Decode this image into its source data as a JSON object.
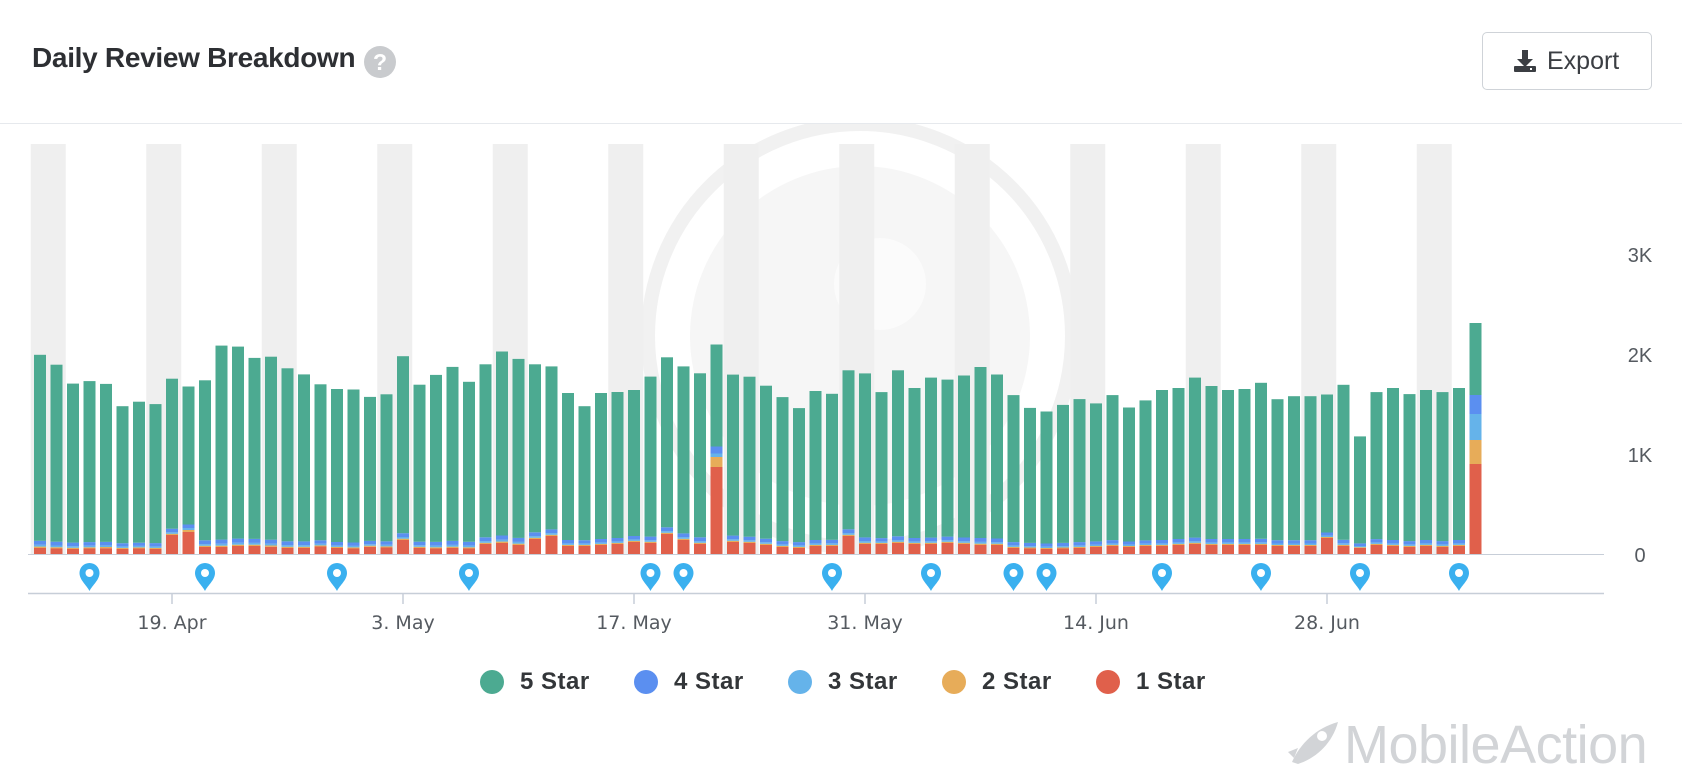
{
  "header": {
    "title": "Daily Review Breakdown",
    "export_label": "Export"
  },
  "icons": {
    "help": "question-circle-icon",
    "export": "download-icon",
    "event_marker": "map-pin-icon"
  },
  "brand": {
    "name": "MobileAction"
  },
  "legend": [
    {
      "label": "5 Star",
      "color": "#4caa91"
    },
    {
      "label": "4 Star",
      "color": "#5b8ff0"
    },
    {
      "label": "3 Star",
      "color": "#65b3ea"
    },
    {
      "label": "2 Star",
      "color": "#e7ac59"
    },
    {
      "label": "1 Star",
      "color": "#e0604b"
    }
  ],
  "chart_data": {
    "type": "bar",
    "stacked": true,
    "start_date": "2020-04-11",
    "x_ticks": [
      "19. Apr",
      "3. May",
      "17. May",
      "31. May",
      "14. Jun",
      "28. Jun"
    ],
    "y_ticks": [
      "0",
      "1K",
      "2K",
      "3K"
    ],
    "ylim": [
      0,
      4000
    ],
    "y_axis_side": "right",
    "weekend_bands": true,
    "event_marker_days": [
      3,
      10,
      18,
      26,
      37,
      39,
      48,
      54,
      59,
      61,
      68,
      74,
      80,
      86
    ],
    "series": [
      {
        "name": "5 Star",
        "color": "#4caa91",
        "values": [
          1860,
          1770,
          1590,
          1610,
          1580,
          1370,
          1410,
          1390,
          1500,
          1380,
          1600,
          1940,
          1920,
          1810,
          1830,
          1730,
          1670,
          1560,
          1530,
          1530,
          1440,
          1470,
          1770,
          1570,
          1670,
          1740,
          1600,
          1730,
          1840,
          1790,
          1680,
          1630,
          1470,
          1340,
          1460,
          1460,
          1460,
          1600,
          1700,
          1670,
          1640,
          1020,
          1610,
          1600,
          1530,
          1440,
          1340,
          1490,
          1460,
          1590,
          1640,
          1460,
          1660,
          1500,
          1600,
          1570,
          1620,
          1710,
          1640,
          1470,
          1350,
          1320,
          1380,
          1430,
          1380,
          1450,
          1340,
          1400,
          1500,
          1510,
          1600,
          1530,
          1490,
          1500,
          1560,
          1410,
          1440,
          1440,
          1380,
          1550,
          1070,
          1470,
          1520,
          1470,
          1500,
          1490,
          1520,
          720
        ]
      },
      {
        "name": "4 Star",
        "color": "#5b8ff0",
        "values": [
          40,
          38,
          36,
          36,
          35,
          32,
          32,
          33,
          35,
          35,
          38,
          42,
          42,
          40,
          40,
          38,
          37,
          35,
          34,
          34,
          33,
          35,
          38,
          35,
          37,
          40,
          38,
          38,
          42,
          40,
          38,
          37,
          34,
          32,
          34,
          34,
          34,
          36,
          38,
          37,
          38,
          70,
          36,
          35,
          35,
          33,
          33,
          34,
          35,
          38,
          37,
          33,
          38,
          34,
          36,
          36,
          37,
          39,
          37,
          33,
          32,
          31,
          32,
          33,
          32,
          33,
          31,
          32,
          34,
          34,
          36,
          34,
          34,
          34,
          35,
          33,
          33,
          33,
          31,
          35,
          26,
          33,
          34,
          33,
          34,
          33,
          34,
          190
        ]
      },
      {
        "name": "3 Star",
        "color": "#65b3ea",
        "values": [
          18,
          17,
          16,
          16,
          16,
          15,
          15,
          15,
          16,
          20,
          17,
          19,
          19,
          18,
          18,
          17,
          17,
          16,
          15,
          15,
          15,
          16,
          17,
          16,
          17,
          18,
          17,
          17,
          19,
          18,
          17,
          17,
          15,
          15,
          15,
          15,
          15,
          16,
          17,
          17,
          17,
          35,
          16,
          16,
          16,
          15,
          15,
          15,
          16,
          17,
          17,
          15,
          17,
          15,
          16,
          16,
          16,
          18,
          16,
          15,
          14,
          14,
          14,
          15,
          14,
          15,
          14,
          14,
          15,
          15,
          16,
          15,
          15,
          15,
          16,
          15,
          15,
          15,
          14,
          16,
          12,
          15,
          15,
          15,
          15,
          15,
          15,
          260
        ]
      },
      {
        "name": "2 Star",
        "color": "#e7ac59",
        "values": [
          14,
          13,
          12,
          12,
          12,
          11,
          11,
          11,
          12,
          20,
          12,
          13,
          13,
          13,
          13,
          12,
          12,
          11,
          11,
          11,
          11,
          11,
          13,
          12,
          12,
          13,
          12,
          12,
          14,
          13,
          12,
          12,
          11,
          11,
          11,
          11,
          11,
          12,
          12,
          12,
          12,
          100,
          12,
          12,
          12,
          11,
          11,
          11,
          11,
          12,
          12,
          11,
          12,
          11,
          12,
          12,
          12,
          13,
          12,
          11,
          10,
          10,
          10,
          11,
          10,
          11,
          10,
          10,
          11,
          11,
          12,
          11,
          11,
          11,
          11,
          10,
          10,
          10,
          10,
          11,
          8,
          11,
          11,
          11,
          11,
          11,
          11,
          240
        ]
      },
      {
        "name": "1 Star",
        "color": "#e0604b",
        "values": [
          60,
          55,
          50,
          55,
          58,
          50,
          55,
          50,
          190,
          220,
          70,
          70,
          80,
          80,
          72,
          60,
          60,
          75,
          60,
          55,
          72,
          65,
          140,
          60,
          55,
          60,
          55,
          100,
          110,
          90,
          150,
          180,
          80,
          80,
          90,
          100,
          120,
          110,
          200,
          140,
          100,
          870,
          120,
          110,
          90,
          70,
          60,
          80,
          80,
          180,
          100,
          100,
          110,
          100,
          100,
          110,
          100,
          90,
          90,
          60,
          55,
          50,
          55,
          60,
          70,
          80,
          70,
          80,
          80,
          90,
          100,
          90,
          90,
          90,
          90,
          80,
          80,
          80,
          160,
          80,
          60,
          90,
          80,
          70,
          80,
          70,
          80,
          900
        ]
      }
    ]
  }
}
